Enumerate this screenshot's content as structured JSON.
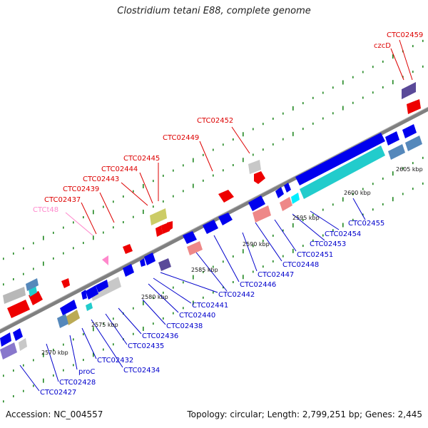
{
  "title": "Clostridium tetani E88, complete genome",
  "footer": {
    "accession": "Accession: NC_004557",
    "summary": "Topology: circular; Length: 2,799,251 bp; Genes: 2,445"
  },
  "colors": {
    "label_red": "#dd0000",
    "label_blue": "#0000cc",
    "label_pink": "#ff88cc",
    "backbone": "#808080",
    "tick": "#228822"
  },
  "scale_labels": [
    {
      "text": "2570 kbp"
    },
    {
      "text": "2575 kbp"
    },
    {
      "text": "2580 kbp"
    },
    {
      "text": "2585 kbp"
    },
    {
      "text": "2590 kbp"
    },
    {
      "text": "2595 kbp"
    },
    {
      "text": "2600 kbp"
    },
    {
      "text": "2605 kbp"
    }
  ],
  "top_labels": [
    {
      "text": "CTC02459",
      "color": "red"
    },
    {
      "text": "czcD",
      "color": "red"
    },
    {
      "text": "CTC02452",
      "color": "red"
    },
    {
      "text": "CTC02449",
      "color": "red"
    },
    {
      "text": "CTC02445",
      "color": "red"
    },
    {
      "text": "CTC02444",
      "color": "red"
    },
    {
      "text": "CTC02443",
      "color": "red"
    },
    {
      "text": "CTC02439",
      "color": "red"
    },
    {
      "text": "CTC02437",
      "color": "red"
    },
    {
      "text": "CTCt48",
      "color": "pink"
    }
  ],
  "bottom_labels": [
    {
      "text": "CTC02455"
    },
    {
      "text": "CTC02454"
    },
    {
      "text": "CTC02453"
    },
    {
      "text": "CTC02451"
    },
    {
      "text": "CTC02448"
    },
    {
      "text": "CTC02447"
    },
    {
      "text": "CTC02446"
    },
    {
      "text": "CTC02442"
    },
    {
      "text": "CTC02441"
    },
    {
      "text": "CTC02440"
    },
    {
      "text": "CTC02438"
    },
    {
      "text": "CTC02436"
    },
    {
      "text": "CTC02435"
    },
    {
      "text": "CTC02434"
    },
    {
      "text": "CTC02432"
    },
    {
      "text": "proC"
    },
    {
      "text": "CTC02428"
    },
    {
      "text": "CTC02427"
    }
  ]
}
